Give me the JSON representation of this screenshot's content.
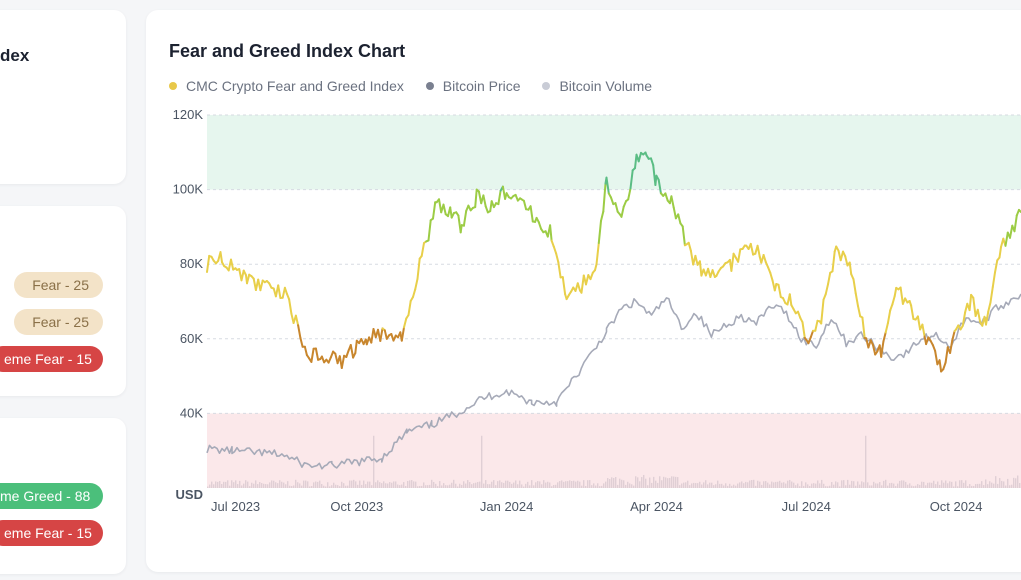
{
  "left_panel": {
    "title_partial": "dex",
    "history_pills": [
      {
        "label": "Fear - 25",
        "kind": "fear"
      },
      {
        "label": "Fear - 25",
        "kind": "fear"
      },
      {
        "label": "eme Fear - 15",
        "kind": "xfear"
      }
    ],
    "extreme_pills": [
      {
        "label": "me Greed - 88",
        "kind": "xgreed"
      },
      {
        "label": "eme Fear - 15",
        "kind": "xfear"
      }
    ]
  },
  "colors": {
    "fear_greed": "#e8c84a",
    "bitcoin_price": "#7a8090",
    "bitcoin_volume": "#c9ccd6",
    "greed_zone": "#e6f6ee",
    "fear_zone": "#fbe8ea",
    "extreme_fear_pill": "#d64545",
    "extreme_greed_pill": "#4bbf7b",
    "fear_pill": "#f3e3c8"
  },
  "chart_data": {
    "type": "line",
    "title": "Fear and Greed Index Chart",
    "legend": [
      "CMC Crypto Fear and Greed Index",
      "Bitcoin Price",
      "Bitcoin Volume"
    ],
    "y_ticks": [
      "120K",
      "100K",
      "80K",
      "60K",
      "40K",
      "USD"
    ],
    "y_tick_values": [
      120000,
      100000,
      80000,
      60000,
      40000,
      20000
    ],
    "x_ticks": [
      "Jul 2023",
      "Oct 2023",
      "Jan 2024",
      "Apr 2024",
      "Jul 2024",
      "Oct 2024"
    ],
    "x_tick_months": [
      0,
      3,
      6,
      9,
      12,
      15
    ],
    "x_range_months": [
      0,
      16.3
    ],
    "ylim": [
      20000,
      120000
    ],
    "bands": [
      {
        "from": 100000,
        "to": 120000,
        "zone": "greed"
      },
      {
        "from": 20000,
        "to": 40000,
        "zone": "fear"
      }
    ],
    "fear_greed_line": {
      "x_months": [
        0,
        0.3,
        0.6,
        0.8,
        1.2,
        1.6,
        2.0,
        2.3,
        2.7,
        3.0,
        3.2,
        3.6,
        3.9,
        4.3,
        4.6,
        4.9,
        5.1,
        5.4,
        5.7,
        6.0,
        6.3,
        6.6,
        6.9,
        7.2,
        7.5,
        7.8,
        8.0,
        8.3,
        8.6,
        8.8,
        9.0,
        9.3,
        9.6,
        9.9,
        10.2,
        10.5,
        10.8,
        11.1,
        11.4,
        11.7,
        12.0,
        12.3,
        12.6,
        12.9,
        13.2,
        13.5,
        13.8,
        14.1,
        14.4,
        14.7,
        15.0,
        15.3,
        15.6,
        15.9,
        16.3
      ],
      "y_values": [
        80000,
        82000,
        78000,
        76000,
        74000,
        72000,
        55000,
        56000,
        54000,
        58000,
        60000,
        62000,
        60000,
        82000,
        96000,
        94000,
        90000,
        98000,
        95000,
        100000,
        96000,
        92000,
        88000,
        72000,
        74000,
        80000,
        102000,
        92000,
        108000,
        111000,
        102000,
        98000,
        85000,
        78000,
        76000,
        80000,
        86000,
        82000,
        74000,
        70000,
        60000,
        66000,
        84000,
        78000,
        60000,
        56000,
        74000,
        68000,
        60000,
        52000,
        62000,
        70000,
        64000,
        84000,
        94000
      ]
    },
    "bitcoin_price": {
      "x_months": [
        0,
        0.5,
        1.0,
        1.5,
        2.0,
        2.5,
        3.0,
        3.5,
        4.0,
        4.5,
        5.0,
        5.5,
        6.0,
        6.5,
        7.0,
        7.5,
        8.0,
        8.3,
        8.6,
        8.9,
        9.2,
        9.5,
        9.8,
        10.1,
        10.4,
        10.7,
        11.0,
        11.3,
        11.6,
        11.9,
        12.2,
        12.5,
        12.8,
        13.1,
        13.4,
        13.7,
        14.0,
        14.3,
        14.6,
        14.9,
        15.2,
        15.5,
        15.8,
        16.3
      ],
      "y_values": [
        30500,
        30000,
        29500,
        29000,
        26000,
        26000,
        27000,
        28000,
        35000,
        37000,
        40000,
        44000,
        46000,
        43000,
        43000,
        52000,
        62000,
        68000,
        70000,
        66000,
        71000,
        63000,
        67000,
        61000,
        64000,
        66000,
        64000,
        69000,
        67000,
        60000,
        58000,
        66000,
        59000,
        61000,
        58000,
        55000,
        56000,
        60000,
        61000,
        58000,
        66000,
        64000,
        68000,
        72000
      ]
    },
    "bitcoin_volume": {
      "x_range_months": [
        0,
        16.3
      ],
      "typical_level": 22000,
      "peak_level": 34000
    }
  }
}
